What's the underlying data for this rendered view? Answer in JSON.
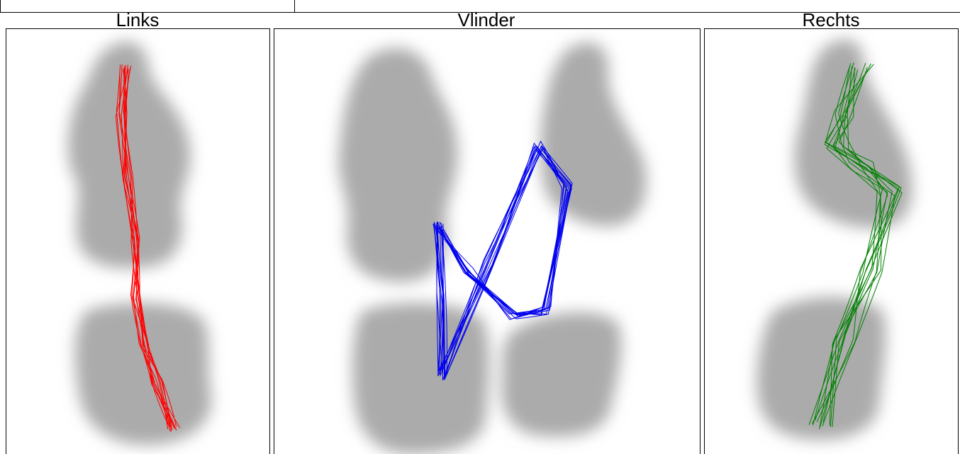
{
  "panels": [
    {
      "title": "Links"
    },
    {
      "title": "Vlinder"
    },
    {
      "title": "Rechts"
    }
  ]
}
